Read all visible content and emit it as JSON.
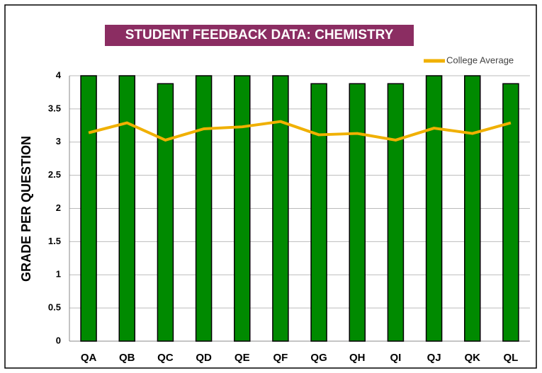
{
  "chart_data": {
    "type": "bar",
    "title": "STUDENT FEEDBACK DATA: CHEMISTRY",
    "y_label": "GRADE PER QUESTION",
    "categories": [
      "QA",
      "QB",
      "QC",
      "QD",
      "QE",
      "QF",
      "QG",
      "QH",
      "QI",
      "QJ",
      "QK",
      "QL"
    ],
    "series": [
      {
        "type": "bar",
        "color": "#008a00",
        "values": [
          4,
          4,
          3.88,
          4,
          4,
          4,
          3.88,
          3.88,
          3.88,
          4,
          4,
          3.88
        ]
      },
      {
        "type": "line",
        "name": "College Average",
        "color": "#f0b000",
        "values": [
          3.14,
          3.29,
          3.03,
          3.2,
          3.23,
          3.31,
          3.11,
          3.13,
          3.03,
          3.21,
          3.13,
          3.29
        ]
      }
    ],
    "ylim": [
      0,
      4
    ],
    "yticks": [
      0,
      0.5,
      1,
      1.5,
      2,
      2.5,
      3,
      3.5,
      4
    ],
    "grid": true,
    "legend": "top-right"
  }
}
